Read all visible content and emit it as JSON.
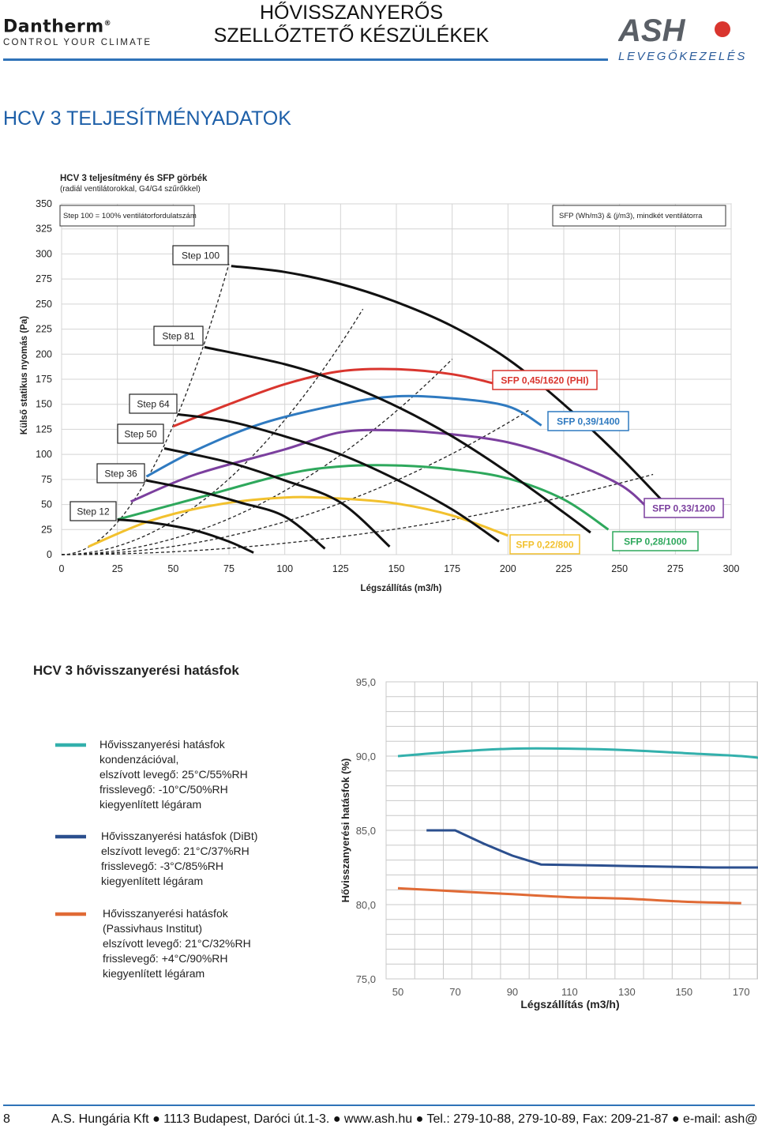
{
  "header": {
    "brand_left": "Dantherm",
    "brand_left_mark": "®",
    "brand_left_tagline": "CONTROL YOUR CLIMATE",
    "title_line1": "HŐVISSZANYERŐS",
    "title_line2": "SZELLŐZTETŐ KÉSZÜLÉKEK",
    "brand_right": "ASH",
    "brand_right_sub": "LEVEGŐKEZELÉS"
  },
  "section_title": "HCV 3 TELJESÍTMÉNYADATOK",
  "chart_data": [
    {
      "type": "line",
      "title": "HCV 3 teljesítmény és SFP görbék",
      "subtitle": "(radiál ventilátorokkal, G4/G4 szűrőkkel)",
      "xlabel": "Légszállítás (m3/h)",
      "ylabel": "Külső statikus nyomás (Pa)",
      "xlim": [
        0,
        300
      ],
      "ylim": [
        0,
        350
      ],
      "x_ticks": [
        "0",
        "25",
        "50",
        "75",
        "100",
        "125",
        "150",
        "175",
        "200",
        "225",
        "250",
        "275",
        "300"
      ],
      "y_ticks": [
        "0",
        "25",
        "50",
        "75",
        "100",
        "125",
        "150",
        "175",
        "200",
        "225",
        "250",
        "275",
        "300",
        "325",
        "350"
      ],
      "annotations": {
        "step_note": "Step 100 = 100% ventilátorfordulatszám",
        "sfp_note": "SFP (Wh/m3) & (j/m3), mindkét ventilátorra"
      },
      "fan_curves": [
        {
          "name": "Step 100",
          "points": [
            [
              76,
              288
            ],
            [
              100,
              282
            ],
            [
              125,
              270
            ],
            [
              150,
              252
            ],
            [
              175,
              228
            ],
            [
              200,
              195
            ],
            [
              225,
              150
            ],
            [
              250,
              98
            ],
            [
              275,
              40
            ]
          ]
        },
        {
          "name": "Step 81",
          "points": [
            [
              64,
              207
            ],
            [
              100,
              190
            ],
            [
              125,
              172
            ],
            [
              150,
              148
            ],
            [
              175,
              118
            ],
            [
              200,
              82
            ],
            [
              225,
              42
            ],
            [
              237,
              22
            ]
          ]
        },
        {
          "name": "Step 64",
          "points": [
            [
              52,
              140
            ],
            [
              75,
              133
            ],
            [
              100,
              118
            ],
            [
              125,
              100
            ],
            [
              150,
              75
            ],
            [
              175,
              45
            ],
            [
              196,
              13
            ]
          ]
        },
        {
          "name": "Step 50",
          "points": [
            [
              46,
              106
            ],
            [
              75,
              92
            ],
            [
              100,
              74
            ],
            [
              125,
              52
            ],
            [
              147,
              8
            ]
          ]
        },
        {
          "name": "Step 36",
          "points": [
            [
              38,
              74
            ],
            [
              60,
              64
            ],
            [
              80,
              52
            ],
            [
              100,
              38
            ],
            [
              118,
              6
            ]
          ]
        },
        {
          "name": "Step 12",
          "points": [
            [
              25,
              35
            ],
            [
              40,
              32
            ],
            [
              60,
              24
            ],
            [
              75,
              13
            ],
            [
              86,
              2
            ]
          ]
        }
      ],
      "sfp_curves": [
        {
          "name": "SFP 0,45/1620 (PHI)",
          "color": "#d9352e",
          "points": [
            [
              50,
              128
            ],
            [
              75,
              150
            ],
            [
              100,
              170
            ],
            [
              125,
              183
            ],
            [
              150,
              185
            ],
            [
              175,
              180
            ],
            [
              195,
              170
            ],
            [
              200,
              166
            ]
          ]
        },
        {
          "name": "SFP 0,39/1400",
          "color": "#2f7ac0",
          "points": [
            [
              38,
              78
            ],
            [
              60,
              104
            ],
            [
              90,
              131
            ],
            [
              125,
              150
            ],
            [
              150,
              158
            ],
            [
              175,
              156
            ],
            [
              200,
              148
            ],
            [
              215,
              129
            ]
          ]
        },
        {
          "name": "SFP 0,33/1200",
          "color": "#7b3f9e",
          "points": [
            [
              31,
              53
            ],
            [
              60,
              80
            ],
            [
              100,
              105
            ],
            [
              125,
              122
            ],
            [
              150,
              124
            ],
            [
              175,
              120
            ],
            [
              200,
              112
            ],
            [
              225,
              95
            ],
            [
              250,
              70
            ],
            [
              262,
              48
            ]
          ]
        },
        {
          "name": "SFP 0,28/1000",
          "color": "#2ea85c",
          "points": [
            [
              25,
              35
            ],
            [
              60,
              56
            ],
            [
              100,
              80
            ],
            [
              125,
              88
            ],
            [
              150,
              89
            ],
            [
              175,
              85
            ],
            [
              200,
              76
            ],
            [
              225,
              55
            ],
            [
              245,
              25
            ]
          ]
        },
        {
          "name": "SFP 0,22/800",
          "color": "#f2c12e",
          "points": [
            [
              12,
              8
            ],
            [
              40,
              34
            ],
            [
              70,
              50
            ],
            [
              100,
              57
            ],
            [
              125,
              56
            ],
            [
              150,
              51
            ],
            [
              175,
              39
            ],
            [
              200,
              19
            ]
          ]
        }
      ],
      "system_curves": [
        {
          "name": "ref-1",
          "to": [
            75,
            290
          ]
        },
        {
          "name": "ref-2",
          "to": [
            135,
            245
          ]
        },
        {
          "name": "ref-3",
          "to": [
            175,
            195
          ]
        },
        {
          "name": "ref-4",
          "to": [
            210,
            145
          ]
        },
        {
          "name": "ref-5",
          "to": [
            265,
            80
          ]
        }
      ]
    },
    {
      "type": "line",
      "title": "HCV 3 hővisszanyerési hatásfok",
      "xlabel": "Légszállítás (m3/h)",
      "ylabel": "Hővisszanyerési hatásfok (%)",
      "xlim": [
        50,
        180
      ],
      "ylim": [
        75,
        95
      ],
      "x_ticks": [
        "50",
        "70",
        "90",
        "110",
        "130",
        "150",
        "170"
      ],
      "y_ticks": [
        "75,0",
        "80,0",
        "85,0",
        "90,0",
        "95,0"
      ],
      "series": [
        {
          "name": "condensation",
          "color": "#33b0ac",
          "legend": [
            "Hővisszanyerési hatásfok",
            "kondenzációval,",
            "elszívott levegő: 25°C/55%RH",
            "frisslevegő: -10°C/50%RH",
            "kiegyenlített légáram"
          ],
          "points": [
            [
              50,
              90.0
            ],
            [
              70,
              90.3
            ],
            [
              90,
              90.5
            ],
            [
              110,
              90.5
            ],
            [
              130,
              90.4
            ],
            [
              150,
              90.2
            ],
            [
              170,
              90.0
            ],
            [
              180,
              89.8
            ]
          ]
        },
        {
          "name": "DiBt",
          "color": "#2b4f8e",
          "legend": [
            "Hővisszanyerési hatásfok (DiBt)",
            "elszívott levegő: 21°C/37%RH",
            "frisslevegő: -3°C/85%RH",
            "kiegyenlített légáram"
          ],
          "points": [
            [
              60,
              85.0
            ],
            [
              70,
              85.0
            ],
            [
              80,
              84.1
            ],
            [
              90,
              83.3
            ],
            [
              100,
              82.7
            ],
            [
              130,
              82.6
            ],
            [
              160,
              82.5
            ],
            [
              180,
              82.5
            ]
          ]
        },
        {
          "name": "Passivhaus",
          "color": "#e06a35",
          "legend": [
            "Hővisszanyerési hatásfok",
            "(Passivhaus Institut)",
            "elszívott levegő: 21°C/32%RH",
            "frisslevegő: +4°C/90%RH",
            "kiegyenlített légáram"
          ],
          "points": [
            [
              50,
              81.1
            ],
            [
              70,
              80.9
            ],
            [
              90,
              80.7
            ],
            [
              110,
              80.5
            ],
            [
              130,
              80.4
            ],
            [
              150,
              80.2
            ],
            [
              170,
              80.1
            ]
          ]
        }
      ]
    }
  ],
  "footer": {
    "page_number": "8",
    "text": "A.S. Hungária Kft ● 1113 Budapest, Daróci út.1-3. ● www.ash.hu ● Tel.: 279-10-88, 279-10-89, Fax: 209-21-87 ● e-mail: ash@ash.hu"
  }
}
